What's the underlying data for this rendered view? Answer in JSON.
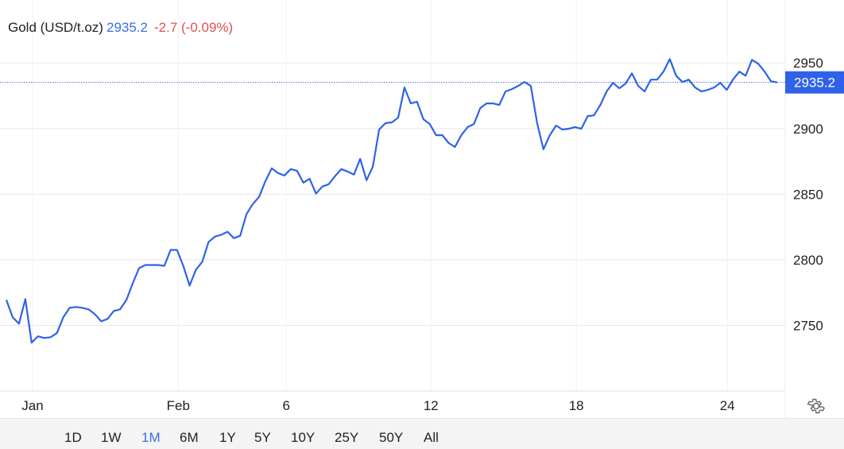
{
  "header": {
    "instrument": "Gold (USD/t.oz)",
    "price": "2935.2",
    "change": "-2.7 (-0.09%)"
  },
  "ranges": [
    "1D",
    "1W",
    "1M",
    "6M",
    "1Y",
    "5Y",
    "10Y",
    "25Y",
    "50Y",
    "All"
  ],
  "active_range": "1M",
  "colors": {
    "line": "#2f62e8",
    "up": "#3a6ee8",
    "down": "#e05050",
    "grid": "#e8e8e8"
  },
  "settings_icon": "gear-icon",
  "chart_data": {
    "type": "line",
    "title": "",
    "xlabel": "",
    "ylabel": "",
    "ylim": [
      2700,
      2998
    ],
    "y_ticks": [
      2750,
      2800,
      2850,
      2900,
      2950
    ],
    "y_axis_position": "right",
    "grid": true,
    "last_value_label": "2935.2",
    "x_ticks": [
      {
        "label": "Jan",
        "at": 4.15
      },
      {
        "label": "Feb",
        "at": 27.2
      },
      {
        "label": "6",
        "at": 44.3
      },
      {
        "label": "12",
        "at": 67.2
      },
      {
        "label": "18",
        "at": 90.2
      },
      {
        "label": "24",
        "at": 114.1
      }
    ],
    "series": [
      {
        "values": [
          2769.4,
          2756.1,
          2751.3,
          2770,
          2736.8,
          2741.7,
          2740.4,
          2741,
          2744.1,
          2756.1,
          2763.4,
          2764,
          2763.4,
          2762.2,
          2758.6,
          2753.1,
          2754.9,
          2761,
          2762.2,
          2769.4,
          2782.1,
          2793.6,
          2796,
          2796,
          2796,
          2795.4,
          2807.5,
          2807.5,
          2795.4,
          2780.3,
          2792.4,
          2798.4,
          2813.5,
          2817.7,
          2819,
          2821.4,
          2816.5,
          2818.3,
          2834.7,
          2842.5,
          2847.9,
          2860,
          2869.7,
          2866.1,
          2864.2,
          2869.1,
          2867.9,
          2858.8,
          2861.8,
          2850.4,
          2855.8,
          2857.6,
          2863.6,
          2869.1,
          2867.3,
          2864.9,
          2876.9,
          2860.6,
          2870.9,
          2899.3,
          2904.1,
          2904.7,
          2908.3,
          2931.3,
          2919.2,
          2920.4,
          2907.1,
          2903.5,
          2895,
          2895,
          2889,
          2886,
          2895,
          2901.1,
          2903.5,
          2915.6,
          2919.2,
          2919.2,
          2918,
          2928.3,
          2930.1,
          2932.5,
          2935.5,
          2932.5,
          2904.1,
          2884.2,
          2895,
          2902.3,
          2899.3,
          2899.9,
          2901.1,
          2899.9,
          2909.5,
          2910.1,
          2918,
          2928.3,
          2934.9,
          2930.7,
          2934.3,
          2942.1,
          2932.5,
          2928.3,
          2937.3,
          2937.3,
          2943.4,
          2953,
          2940.3,
          2935.5,
          2937.3,
          2931.3,
          2928.3,
          2929.5,
          2931.3,
          2934.9,
          2929.5,
          2937.3,
          2943.4,
          2940.3,
          2952.4,
          2949.4,
          2943.4,
          2936.1,
          2935.2
        ]
      }
    ]
  }
}
